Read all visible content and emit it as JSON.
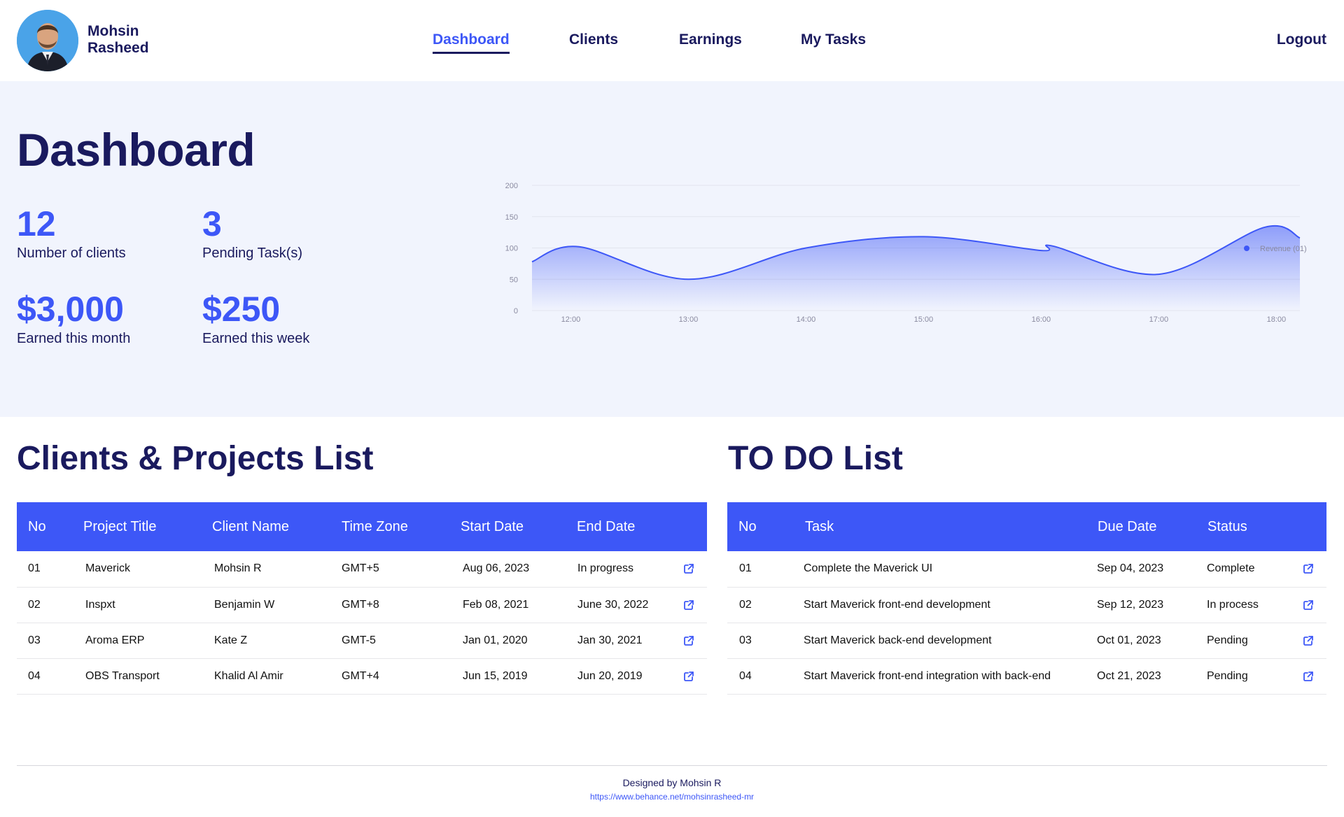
{
  "user": {
    "first_name": "Mohsin",
    "last_name": "Rasheed"
  },
  "nav": {
    "items": [
      {
        "label": "Dashboard",
        "active": true
      },
      {
        "label": "Clients",
        "active": false
      },
      {
        "label": "Earnings",
        "active": false
      },
      {
        "label": "My Tasks",
        "active": false
      }
    ],
    "logout": "Logout"
  },
  "page_title": "Dashboard",
  "stats": [
    {
      "value": "12",
      "label": "Number of clients"
    },
    {
      "value": "3",
      "label": "Pending Task(s)"
    },
    {
      "value": "$3,000",
      "label": "Earned this month"
    },
    {
      "value": "$250",
      "label": "Earned this week"
    }
  ],
  "colors": {
    "accent": "#3d57f7",
    "navy": "#1a1a5e",
    "hero_bg": "#f1f4fd"
  },
  "chart_data": {
    "type": "area",
    "legend": {
      "label": "Revenue (01)",
      "placement": "top-right"
    },
    "grid": true,
    "ylim": [
      0,
      200
    ],
    "yticks": [
      0,
      50,
      100,
      150,
      200
    ],
    "xticks": [
      "12:00",
      "13:00",
      "14:00",
      "15:00",
      "16:00",
      "17:00",
      "18:00"
    ],
    "series": [
      {
        "name": "Revenue (01)",
        "x": [
          11.67,
          12.07,
          13.0,
          14.0,
          15.0,
          16.0,
          16.1,
          17.0,
          17.9,
          18.2
        ],
        "y": [
          78,
          102,
          50,
          100,
          118,
          96,
          103,
          58,
          133,
          116
        ]
      }
    ]
  },
  "clients": {
    "title": "Clients & Projects List",
    "columns": [
      "No",
      "Project Title",
      "Client Name",
      "Time Zone",
      "Start Date",
      "End Date"
    ],
    "rows": [
      [
        "01",
        "Maverick",
        "Mohsin R",
        "GMT+5",
        "Aug 06, 2023",
        "In progress"
      ],
      [
        "02",
        "Inspxt",
        "Benjamin W",
        "GMT+8",
        "Feb 08, 2021",
        "June 30, 2022"
      ],
      [
        "03",
        "Aroma ERP",
        "Kate Z",
        "GMT-5",
        "Jan 01, 2020",
        "Jan 30, 2021"
      ],
      [
        "04",
        "OBS Transport",
        "Khalid Al Amir",
        "GMT+4",
        "Jun 15, 2019",
        "Jun 20, 2019"
      ]
    ],
    "row_icon": "external-link-icon"
  },
  "todo": {
    "title": "TO DO List",
    "columns": [
      "No",
      "Task",
      "Due Date",
      "Status"
    ],
    "rows": [
      [
        "01",
        "Complete the Maverick UI",
        "Sep 04, 2023",
        "Complete"
      ],
      [
        "02",
        "Start Maverick front-end development",
        "Sep 12, 2023",
        "In process"
      ],
      [
        "03",
        "Start Maverick back-end development",
        "Oct 01, 2023",
        "Pending"
      ],
      [
        "04",
        "Start Maverick front-end integration with back-end",
        "Oct 21, 2023",
        "Pending"
      ]
    ],
    "row_icon": "external-link-icon"
  },
  "footer": {
    "credit": "Designed by Mohsin R",
    "url": "https://www.behance.net/mohsinrasheed-mr"
  }
}
